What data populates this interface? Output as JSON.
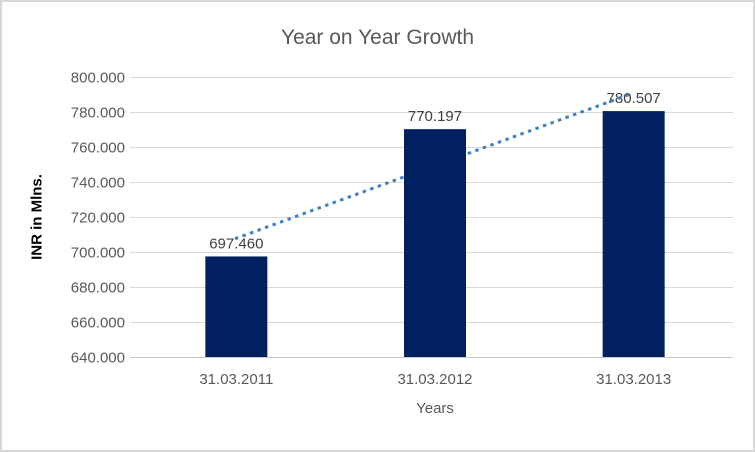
{
  "chart_data": {
    "type": "bar",
    "title": "Year on Year Growth",
    "xlabel": "Years",
    "ylabel": "INR in Mlns.",
    "categories": [
      "31.03.2011",
      "31.03.2012",
      "31.03.2013"
    ],
    "values": [
      697.46,
      770.197,
      780.507
    ],
    "data_labels": [
      "697.460",
      "770.197",
      "780.507"
    ],
    "ylim": [
      640,
      800
    ],
    "ytick_step": 20,
    "ytick_labels": [
      "640.000",
      "660.000",
      "680.000",
      "700.000",
      "720.000",
      "740.000",
      "760.000",
      "780.000",
      "800.000"
    ],
    "grid": true,
    "legend": "none",
    "trendline": {
      "type": "linear",
      "style": "dotted"
    },
    "colors": {
      "bar": "#002060",
      "trendline": "#3F81C1",
      "grid": "#D9D9D9",
      "axis_line": "#C6C6C6",
      "axis_text": "#595959",
      "data_label": "#404040",
      "title": "#595959",
      "ylabel": "#000000",
      "background": "#FFFFFF",
      "border": "#D8D8D8"
    }
  }
}
